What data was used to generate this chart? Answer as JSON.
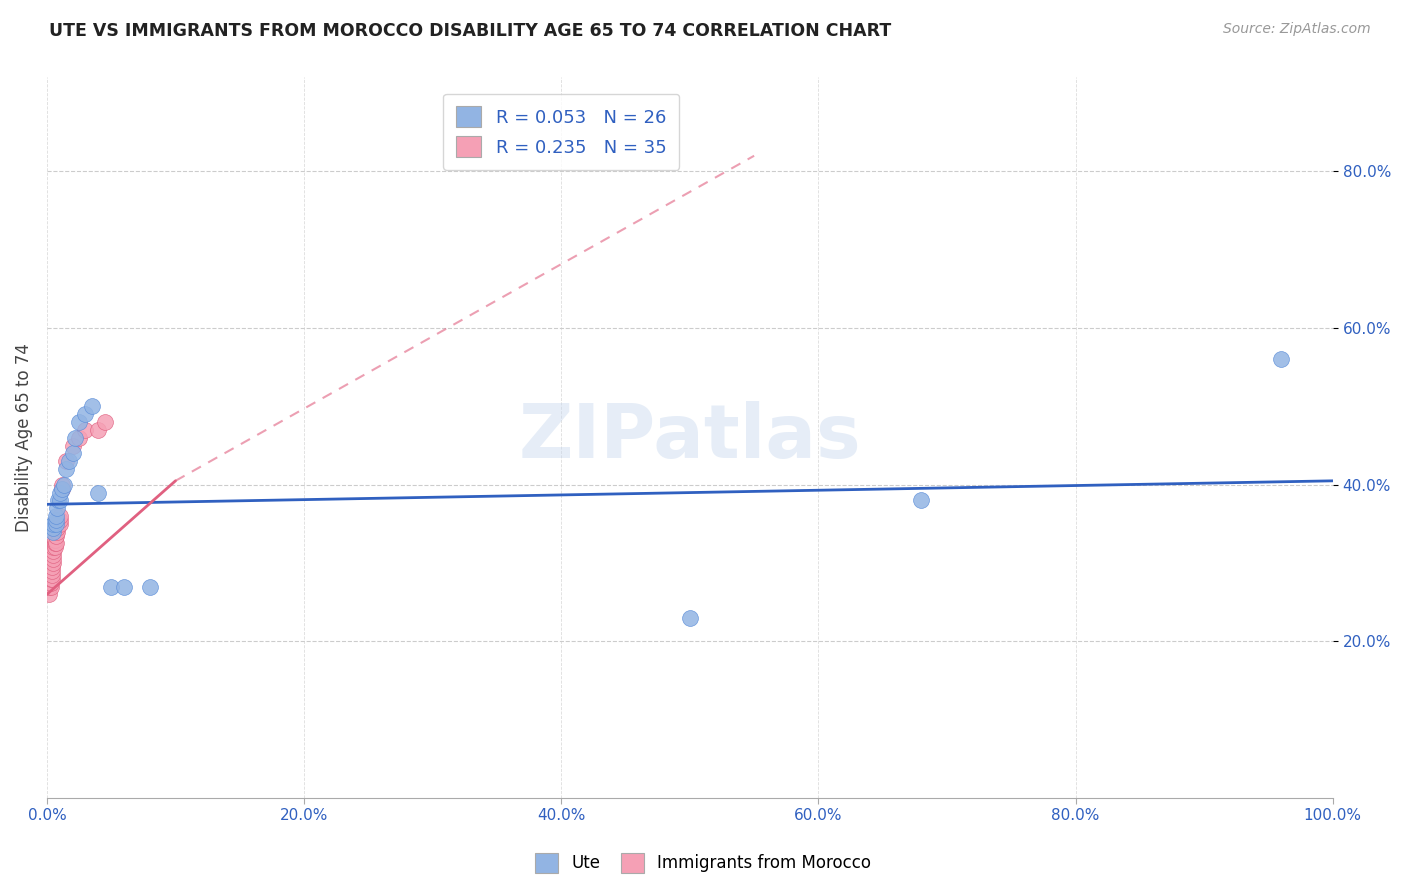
{
  "title": "UTE VS IMMIGRANTS FROM MOROCCO DISABILITY AGE 65 TO 74 CORRELATION CHART",
  "source": "Source: ZipAtlas.com",
  "ylabel": "Disability Age 65 to 74",
  "xlabel": "",
  "legend_label_ute": "Ute",
  "legend_label_morocco": "Immigrants from Morocco",
  "R_ute": 0.053,
  "N_ute": 26,
  "R_morocco": 0.235,
  "N_morocco": 35,
  "ute_color": "#92b4e3",
  "ute_color_dark": "#5b8dd9",
  "morocco_color": "#f5a0b5",
  "morocco_color_dark": "#e06080",
  "trend_ute_color": "#3060c0",
  "trend_morocco_color": "#e06080",
  "watermark": "ZIPatlas",
  "xlim": [
    0.0,
    1.0
  ],
  "ylim": [
    0.0,
    0.92
  ],
  "xtick_labels": [
    "0.0%",
    "",
    "",
    "",
    "",
    "20.0%",
    "",
    "",
    "",
    "",
    "40.0%",
    "",
    "",
    "",
    "",
    "60.0%",
    "",
    "",
    "",
    "",
    "80.0%",
    "",
    "",
    "",
    "",
    "100.0%"
  ],
  "xtick_vals": [
    0.0,
    0.04,
    0.08,
    0.12,
    0.16,
    0.2,
    0.24,
    0.28,
    0.32,
    0.36,
    0.4,
    0.44,
    0.48,
    0.52,
    0.56,
    0.6,
    0.64,
    0.68,
    0.72,
    0.76,
    0.8,
    0.84,
    0.88,
    0.92,
    0.96,
    1.0
  ],
  "xtick_major_labels": [
    "0.0%",
    "20.0%",
    "40.0%",
    "60.0%",
    "80.0%",
    "100.0%"
  ],
  "xtick_major_vals": [
    0.0,
    0.2,
    0.4,
    0.6,
    0.8,
    1.0
  ],
  "ytick_labels": [
    "20.0%",
    "40.0%",
    "60.0%",
    "80.0%"
  ],
  "ytick_vals": [
    0.2,
    0.4,
    0.6,
    0.8
  ],
  "ute_x": [
    0.005,
    0.005,
    0.005,
    0.007,
    0.007,
    0.007,
    0.008,
    0.009,
    0.01,
    0.01,
    0.012,
    0.013,
    0.015,
    0.017,
    0.02,
    0.022,
    0.025,
    0.03,
    0.035,
    0.04,
    0.05,
    0.06,
    0.08,
    0.5,
    0.68,
    0.96
  ],
  "ute_y": [
    0.34,
    0.345,
    0.35,
    0.35,
    0.355,
    0.36,
    0.37,
    0.38,
    0.38,
    0.39,
    0.395,
    0.4,
    0.42,
    0.43,
    0.44,
    0.46,
    0.48,
    0.49,
    0.5,
    0.39,
    0.27,
    0.27,
    0.27,
    0.23,
    0.38,
    0.56
  ],
  "morocco_x": [
    0.002,
    0.002,
    0.002,
    0.003,
    0.003,
    0.003,
    0.003,
    0.003,
    0.004,
    0.004,
    0.004,
    0.004,
    0.005,
    0.005,
    0.005,
    0.005,
    0.005,
    0.006,
    0.006,
    0.006,
    0.007,
    0.007,
    0.008,
    0.008,
    0.01,
    0.01,
    0.01,
    0.012,
    0.012,
    0.015,
    0.02,
    0.025,
    0.03,
    0.04,
    0.045
  ],
  "morocco_y": [
    0.26,
    0.27,
    0.28,
    0.27,
    0.275,
    0.28,
    0.29,
    0.3,
    0.28,
    0.285,
    0.29,
    0.295,
    0.3,
    0.305,
    0.31,
    0.315,
    0.32,
    0.32,
    0.325,
    0.33,
    0.325,
    0.335,
    0.34,
    0.345,
    0.35,
    0.355,
    0.36,
    0.395,
    0.4,
    0.43,
    0.45,
    0.46,
    0.47,
    0.47,
    0.48
  ],
  "ute_trend_x0": 0.0,
  "ute_trend_x1": 1.0,
  "ute_trend_y0": 0.375,
  "ute_trend_y1": 0.405,
  "morocco_trend_solid_x0": 0.0,
  "morocco_trend_solid_x1": 0.1,
  "morocco_trend_solid_y0": 0.26,
  "morocco_trend_solid_y1": 0.405,
  "morocco_trend_dash_x0": 0.1,
  "morocco_trend_dash_x1": 0.55,
  "morocco_trend_dash_y0": 0.405,
  "morocco_trend_dash_y1": 0.82
}
